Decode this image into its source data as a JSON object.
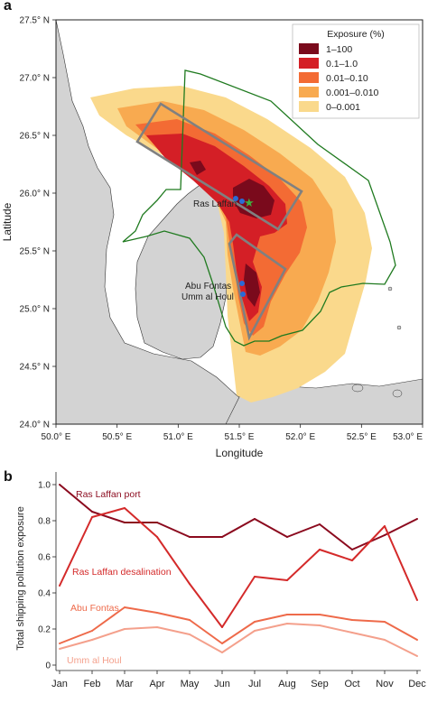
{
  "panel_a": {
    "label": "a",
    "xlabel": "Longitude",
    "ylabel": "Latitude",
    "xticks": [
      "50.0° E",
      "50.5° E",
      "51.0° E",
      "51.5° E",
      "52.0° E",
      "52.5° E",
      "53.0° E"
    ],
    "yticks": [
      "24.0° N",
      "24.5° N",
      "25.0° N",
      "25.5° N",
      "26.0° N",
      "26.5° N",
      "27.0° N",
      "27.5° N"
    ],
    "legend_title": "Exposure (%)",
    "legend": [
      {
        "label": "1–100",
        "color": "#7a0a1c"
      },
      {
        "label": "0.1–1.0",
        "color": "#d41f26"
      },
      {
        "label": "0.01–0.10",
        "color": "#f36b34"
      },
      {
        "label": "0.001–0.010",
        "color": "#f8aa50"
      },
      {
        "label": "0–0.001",
        "color": "#fad98c"
      }
    ],
    "annotations": {
      "ras_laffan": "Ras Laffan",
      "abu_fontas": "Abu Fontas",
      "umm_al_houl": "Umm al Houl"
    }
  },
  "panel_b": {
    "label": "b",
    "ylabel": "Total shipping pollution exposure"
  },
  "chart_data": {
    "type": "line",
    "categories": [
      "Jan",
      "Feb",
      "Mar",
      "Apr",
      "May",
      "Jun",
      "Jul",
      "Aug",
      "Sep",
      "Oct",
      "Nov",
      "Dec"
    ],
    "ylim": [
      0,
      1.05
    ],
    "yticks": [
      "0",
      "0.2",
      "0.4",
      "0.6",
      "0.8",
      "1.0"
    ],
    "ytick_values": [
      0,
      0.2,
      0.4,
      0.6,
      0.8,
      1.0
    ],
    "ylabel": "Total shipping pollution exposure",
    "grid": false,
    "series": [
      {
        "name": "Ras Laffan port",
        "color": "#8b0a1e",
        "values": [
          1.0,
          0.85,
          0.79,
          0.79,
          0.71,
          0.71,
          0.81,
          0.71,
          0.78,
          0.64,
          0.72,
          0.81
        ]
      },
      {
        "name": "Ras Laffan desalination",
        "color": "#d42a2a",
        "values": [
          0.44,
          0.82,
          0.87,
          0.71,
          0.45,
          0.21,
          0.49,
          0.47,
          0.64,
          0.58,
          0.77,
          0.36
        ]
      },
      {
        "name": "Abu Fontas",
        "color": "#ee6a4a",
        "values": [
          0.12,
          0.19,
          0.32,
          0.29,
          0.25,
          0.12,
          0.24,
          0.28,
          0.28,
          0.25,
          0.24,
          0.14
        ]
      },
      {
        "name": "Umm al Houl",
        "color": "#f4a08c",
        "values": [
          0.09,
          0.14,
          0.2,
          0.21,
          0.17,
          0.07,
          0.19,
          0.23,
          0.22,
          0.18,
          0.14,
          0.05
        ]
      }
    ]
  }
}
